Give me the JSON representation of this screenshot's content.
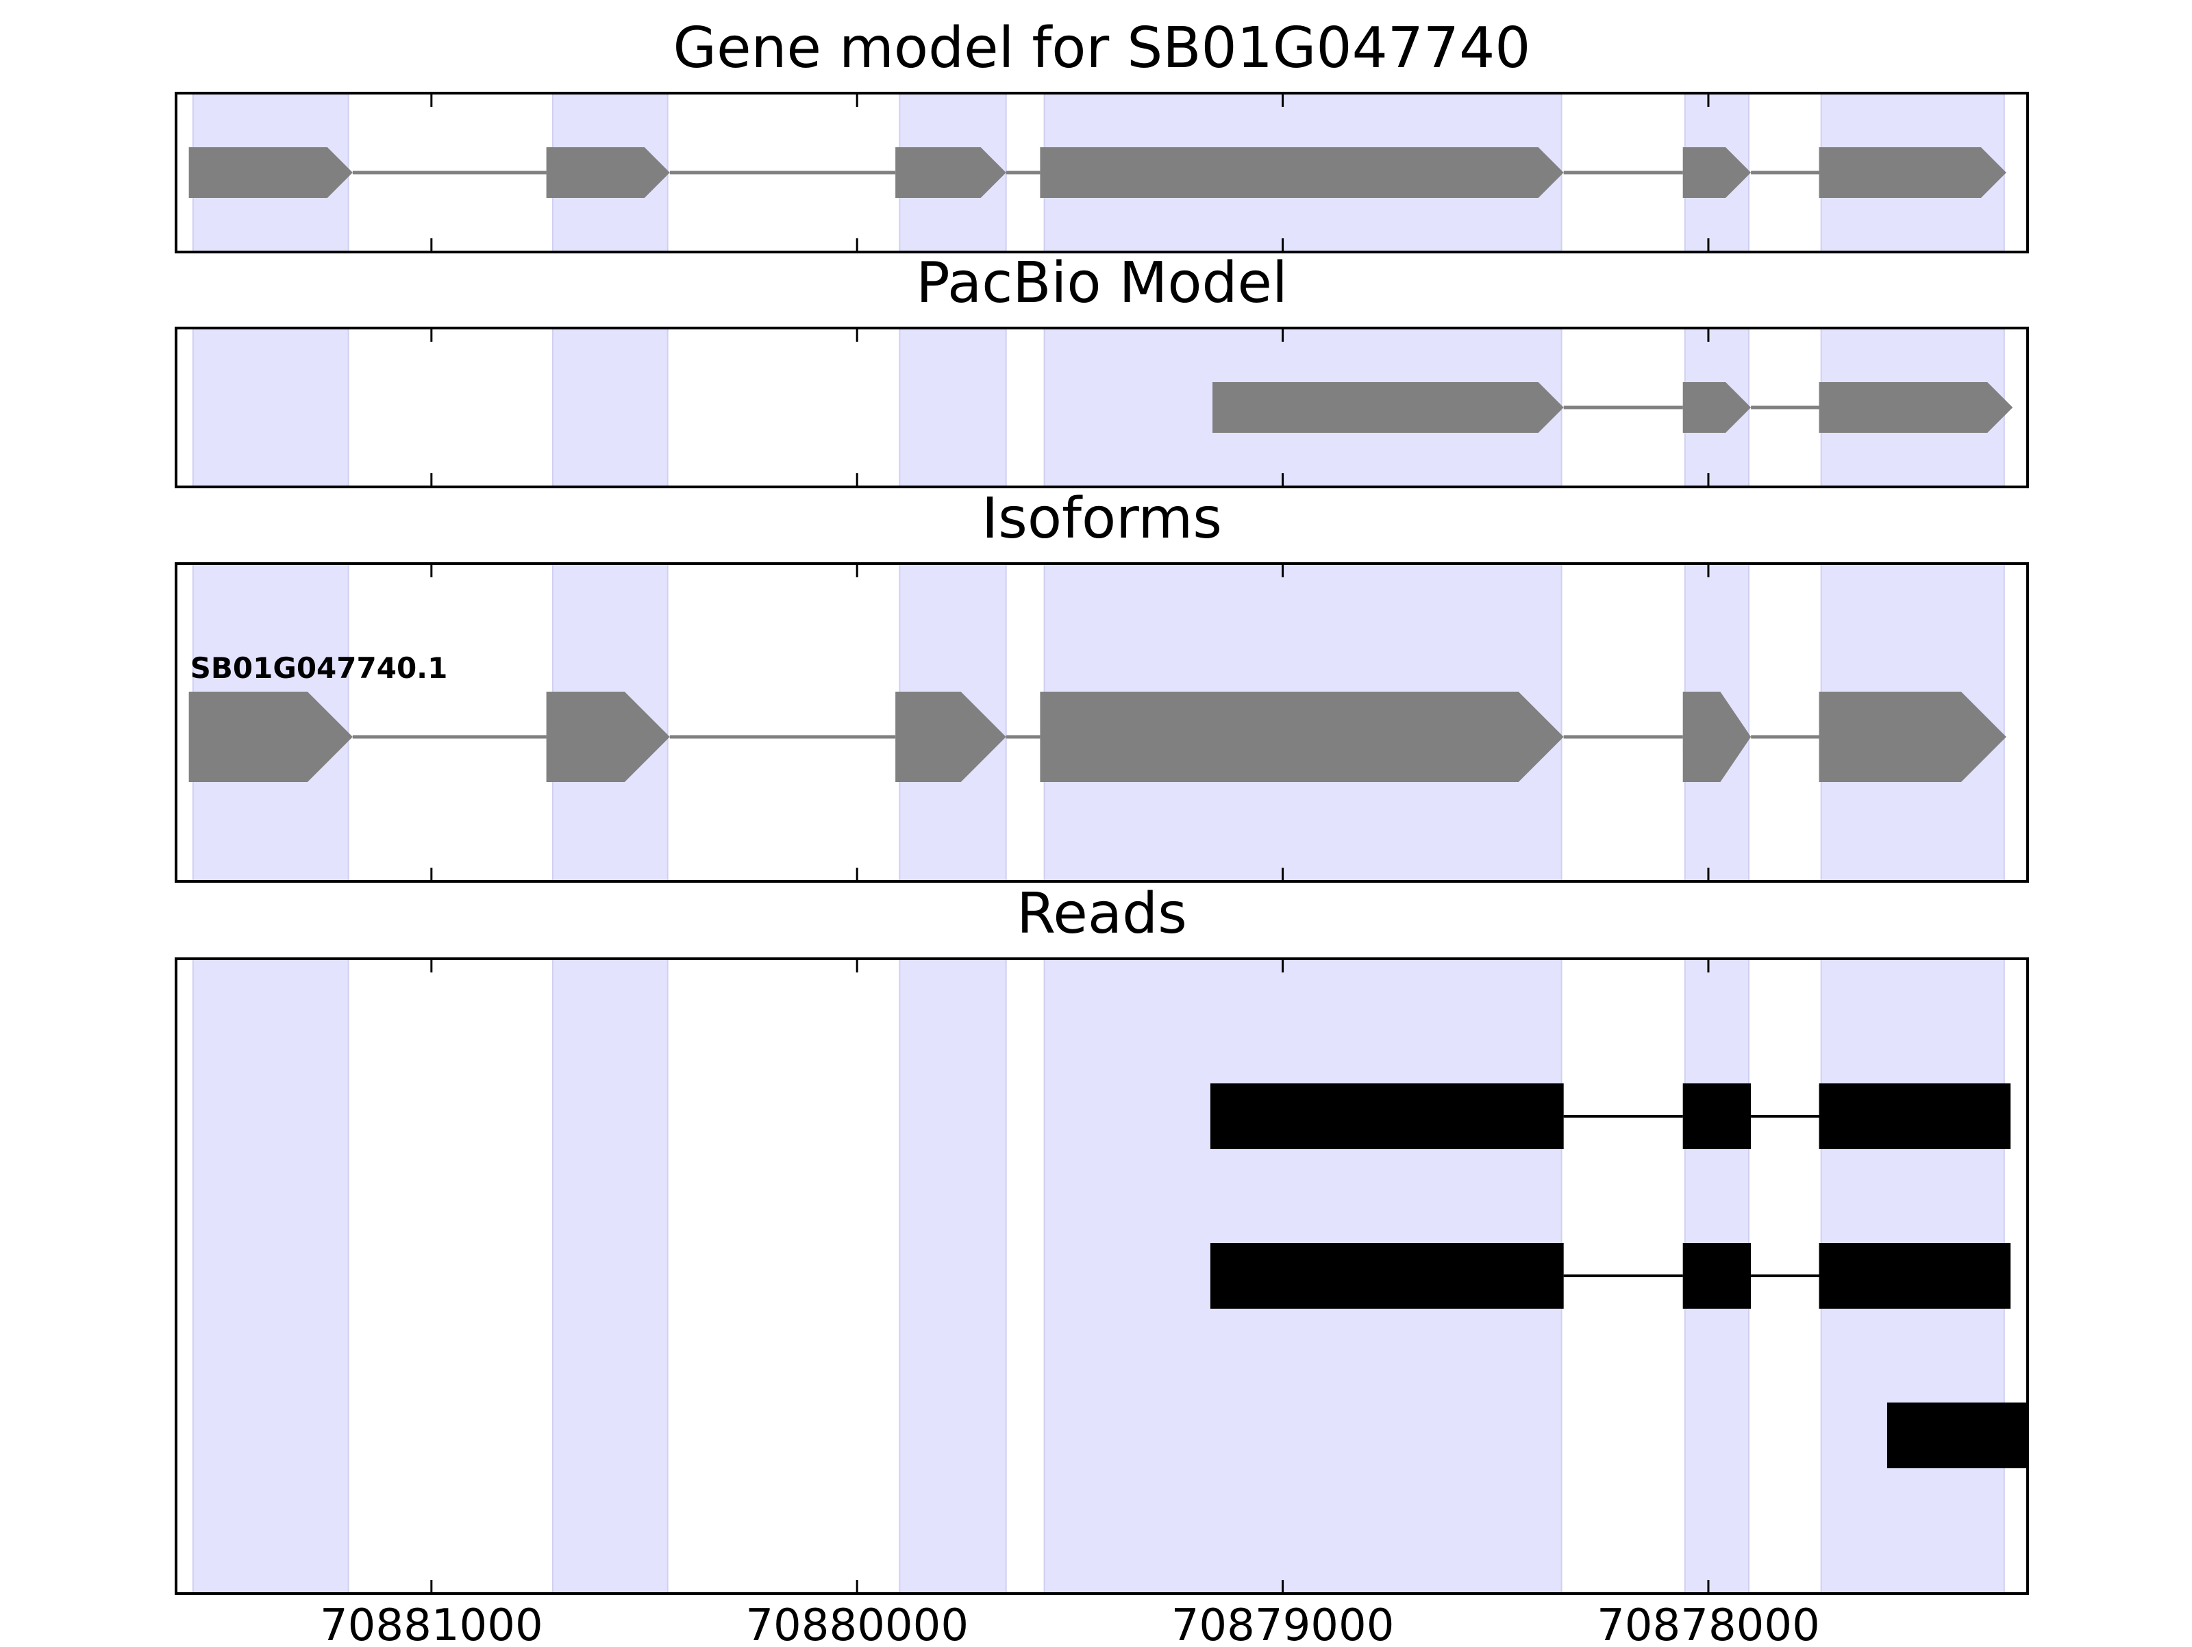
{
  "chart_data": {
    "type": "gene-track",
    "x_axis": {
      "reversed": true,
      "range": [
        70881600,
        70877250
      ],
      "ticks": [
        70881000,
        70880000,
        70879000,
        70878000
      ],
      "tick_labels": [
        "70881000",
        "70880000",
        "70879000",
        "70878000"
      ]
    },
    "colors": {
      "exon_shade": "#e3e3fd",
      "model_feature": "#808080",
      "read": "#000000",
      "frame": "#000000"
    },
    "exon_regions": [
      [
        70881560,
        70881195
      ],
      [
        70880715,
        70880445
      ],
      [
        70879900,
        70879650
      ],
      [
        70879560,
        70878345
      ],
      [
        70878055,
        70877905
      ],
      [
        70877735,
        70877305
      ]
    ],
    "panels": [
      {
        "id": "gene_model",
        "title": "Gene model for SB01G047740",
        "tracks": [
          {
            "strand": "-",
            "label": "",
            "exons": [
              [
                70881570,
                70881185
              ],
              [
                70880730,
                70880440
              ],
              [
                70879910,
                70879650
              ],
              [
                70879570,
                70878340
              ],
              [
                70878060,
                70877900
              ],
              [
                70877740,
                70877300
              ]
            ]
          }
        ]
      },
      {
        "id": "pacbio",
        "title": "PacBio Model",
        "tracks": [
          {
            "strand": "-",
            "label": "",
            "exons": [
              [
                70879165,
                70878340
              ],
              [
                70878060,
                70877900
              ],
              [
                70877740,
                70877285
              ]
            ]
          }
        ]
      },
      {
        "id": "isoforms",
        "title": "Isoforms",
        "tracks": [
          {
            "strand": "-",
            "label": "SB01G047740.1",
            "exons": [
              [
                70881570,
                70881185
              ],
              [
                70880730,
                70880440
              ],
              [
                70879910,
                70879650
              ],
              [
                70879570,
                70878340
              ],
              [
                70878060,
                70877900
              ],
              [
                70877740,
                70877300
              ]
            ]
          }
        ]
      },
      {
        "id": "reads",
        "title": "Reads",
        "tracks": [
          {
            "exons": [
              [
                70879170,
                70878340
              ],
              [
                70878060,
                70877900
              ],
              [
                70877740,
                70877290
              ]
            ]
          },
          {
            "exons": [
              [
                70879170,
                70878340
              ],
              [
                70878060,
                70877900
              ],
              [
                70877740,
                70877290
              ]
            ]
          },
          {
            "exons": [
              [
                70877580,
                70877250
              ]
            ]
          }
        ]
      }
    ]
  }
}
